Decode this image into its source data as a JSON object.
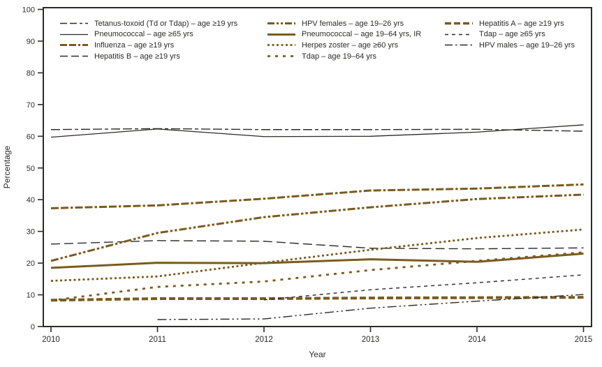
{
  "chart_data": {
    "type": "line",
    "title": "",
    "xlabel": "Year",
    "ylabel": "Percentage",
    "x": [
      2010,
      2011,
      2012,
      2013,
      2014,
      2015
    ],
    "ylim": [
      0,
      100
    ],
    "ytick_step": 10,
    "grid": false,
    "legend_position": "top-inside-three-columns",
    "colors": {
      "black": "#2b2a29",
      "brown": "#7a5b1d"
    },
    "series": [
      {
        "id": "tetanus-td-tdap",
        "label": "Tetanus-toxoid (Td or Tdap) – age ≥19 yrs",
        "color": "#2b2a29",
        "width": 1.4,
        "dash": "13 4 13 4 5 4",
        "legend_dash": "10 4 10 4 4 4",
        "legend_column": 1,
        "values": [
          62.1,
          62.4,
          62.1,
          62.1,
          62.2,
          61.6
        ]
      },
      {
        "id": "pneumococcal-65",
        "label": "Pneumococcal – age ≥65 yrs",
        "color": "#2b2a29",
        "width": 1.3,
        "dash": "",
        "legend_dash": "",
        "legend_column": 1,
        "values": [
          59.7,
          62.3,
          59.9,
          60.0,
          61.3,
          63.6
        ]
      },
      {
        "id": "influenza-19",
        "label": "Influenza – age ≥19 yrs",
        "color": "#7a5b1d",
        "width": 3,
        "dash": "11 3 11 3 3.5 3",
        "legend_dash": "10 3 10 3 3 3",
        "legend_column": 1,
        "values": [
          37.3,
          38.2,
          40.3,
          42.9,
          43.5,
          44.8
        ]
      },
      {
        "id": "hepatitis-b-19",
        "label": "Hepatitis B – age ≥19 yrs",
        "color": "#2b2a29",
        "width": 1.4,
        "dash": "13 6",
        "legend_dash": "11 5",
        "legend_column": 1,
        "values": [
          26.0,
          27.1,
          26.9,
          24.7,
          24.5,
          24.8
        ]
      },
      {
        "id": "hpv-females-19-26",
        "label": "HPV females – age 19–26 yrs",
        "color": "#7a5b1d",
        "width": 3,
        "dash": "11 3 3.5 3 3.5 3",
        "legend_dash": "10 3 3 3 3 3",
        "legend_column": 2,
        "values": [
          20.7,
          29.5,
          34.5,
          37.6,
          40.2,
          41.6
        ]
      },
      {
        "id": "pneumococcal-19-64-ir",
        "label": "Pneumococcal – age 19–64 yrs, IR",
        "color": "#7a5b1d",
        "width": 3,
        "dash": "",
        "legend_dash": "",
        "legend_column": 2,
        "values": [
          18.5,
          20.1,
          20.0,
          21.2,
          20.4,
          23.0
        ]
      },
      {
        "id": "herpes-zoster-60",
        "label": "Herpes zoster – age ≥60 yrs",
        "color": "#7a5b1d",
        "width": 2.8,
        "dash": "3 3.5",
        "legend_dash": "3 3.5",
        "legend_column": 2,
        "values": [
          14.4,
          15.8,
          20.1,
          24.2,
          27.9,
          30.6
        ]
      },
      {
        "id": "tdap-19-64",
        "label": "Tdap – age 19–64 yrs",
        "color": "#7a5b1d",
        "width": 2.8,
        "dash": "4 7",
        "legend_dash": "4 7",
        "legend_column": 2,
        "values": [
          8.2,
          12.5,
          14.2,
          17.8,
          20.7,
          23.4
        ]
      },
      {
        "id": "hepatitis-a-19",
        "label": "Hepatitis A – age ≥19 yrs",
        "color": "#7a5b1d",
        "width": 4,
        "dash": "9 4",
        "legend_dash": "9 4",
        "legend_column": 3,
        "values": [
          8.3,
          8.8,
          8.8,
          9.0,
          9.1,
          9.2
        ]
      },
      {
        "id": "tdap-65",
        "label": "Tdap – age ≥65 yrs",
        "color": "#2b2a29",
        "width": 1.4,
        "dash": "5 5",
        "legend_dash": "5 5",
        "legend_column": 3,
        "values": [
          null,
          null,
          8.4,
          11.6,
          13.8,
          16.3
        ]
      },
      {
        "id": "hpv-males-19-26",
        "label": "HPV males – age 19–26 yrs",
        "color": "#2b2a29",
        "width": 1.4,
        "dash": "13 4 2.5 4 2.5 4",
        "legend_dash": "11 4 2.5 4",
        "legend_column": 3,
        "values": [
          null,
          2.2,
          2.4,
          5.8,
          8.0,
          10.1
        ]
      }
    ]
  }
}
